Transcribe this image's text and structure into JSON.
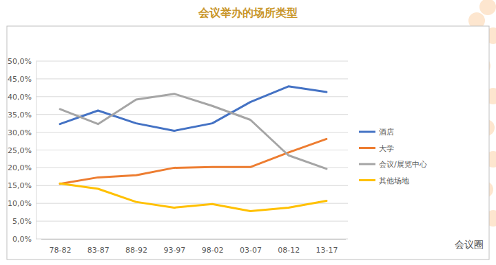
{
  "chart_data": {
    "type": "line",
    "title": "会议举办的场所类型",
    "categories": [
      "78-82",
      "83-87",
      "88-92",
      "93-97",
      "98-02",
      "03-07",
      "08-12",
      "13-17"
    ],
    "series": [
      {
        "name": "酒店",
        "color": "#4472c4",
        "values": [
          32.3,
          36.1,
          32.5,
          30.4,
          32.5,
          38.5,
          42.9,
          41.3
        ]
      },
      {
        "name": "大学",
        "color": "#ed7d31",
        "values": [
          15.5,
          17.3,
          17.9,
          20.0,
          20.2,
          20.2,
          24.3,
          28.1
        ]
      },
      {
        "name": "会议/展览中心",
        "color": "#a5a5a5",
        "values": [
          36.5,
          32.3,
          39.2,
          40.8,
          37.4,
          33.5,
          23.5,
          19.7
        ]
      },
      {
        "name": "其他场地",
        "color": "#ffc000",
        "values": [
          15.6,
          14.1,
          10.4,
          8.8,
          9.8,
          7.8,
          8.8,
          10.7
        ]
      }
    ],
    "ylim": [
      0,
      50
    ],
    "yticks": [
      {
        "value": 0,
        "label": "0,0%"
      },
      {
        "value": 5,
        "label": "5,0%"
      },
      {
        "value": 10,
        "label": "10,0%"
      },
      {
        "value": 15,
        "label": "15,0%"
      },
      {
        "value": 20,
        "label": "20,0%"
      },
      {
        "value": 25,
        "label": "25,0%"
      },
      {
        "value": 30,
        "label": "30,0%"
      },
      {
        "value": 35,
        "label": "35,0%"
      },
      {
        "value": 40,
        "label": "40,0%"
      },
      {
        "value": 45,
        "label": "45,0%"
      },
      {
        "value": 50,
        "label": "50,0%"
      }
    ],
    "grid": true,
    "legend": "right",
    "annotations": [
      "会议圈"
    ]
  }
}
